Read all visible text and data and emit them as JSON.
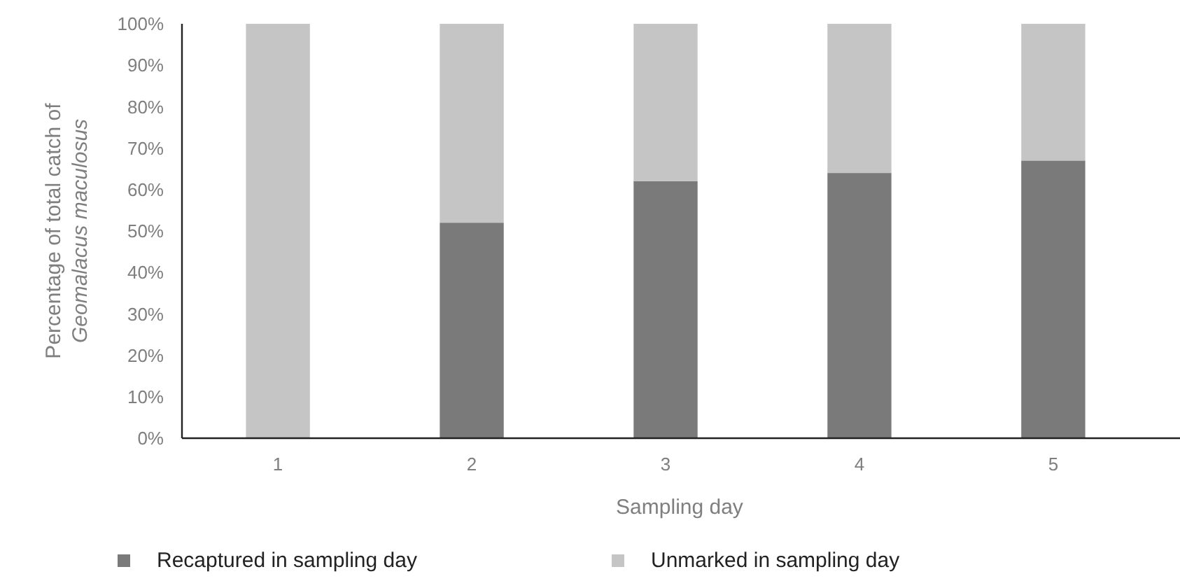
{
  "chart_data": {
    "type": "bar",
    "stacked": true,
    "xlabel": "Sampling day",
    "ylabel": "Percentage of total catch of Geomalacus maculosus",
    "categories": [
      "1",
      "2",
      "3",
      "4",
      "5"
    ],
    "series": [
      {
        "name": "Recaptured in sampling day",
        "color": "#7a7a7a",
        "values": [
          0,
          52,
          62,
          64,
          67
        ]
      },
      {
        "name": "Unmarked in sampling day",
        "color": "#c4c5c4",
        "values": [
          100,
          48,
          38,
          36,
          33
        ]
      }
    ],
    "ylim": [
      0,
      100
    ],
    "yticks": [
      {
        "value": 0,
        "label": "0%"
      },
      {
        "value": 10,
        "label": "10%"
      },
      {
        "value": 20,
        "label": "20%"
      },
      {
        "value": 30,
        "label": "30%"
      },
      {
        "value": 40,
        "label": "40%"
      },
      {
        "value": 50,
        "label": "50%"
      },
      {
        "value": 60,
        "label": "60%"
      },
      {
        "value": 70,
        "label": "70%"
      },
      {
        "value": 80,
        "label": "80%"
      },
      {
        "value": 90,
        "label": "90%"
      },
      {
        "value": 100,
        "label": "100%"
      }
    ],
    "grid": false,
    "legend": "bottom"
  }
}
